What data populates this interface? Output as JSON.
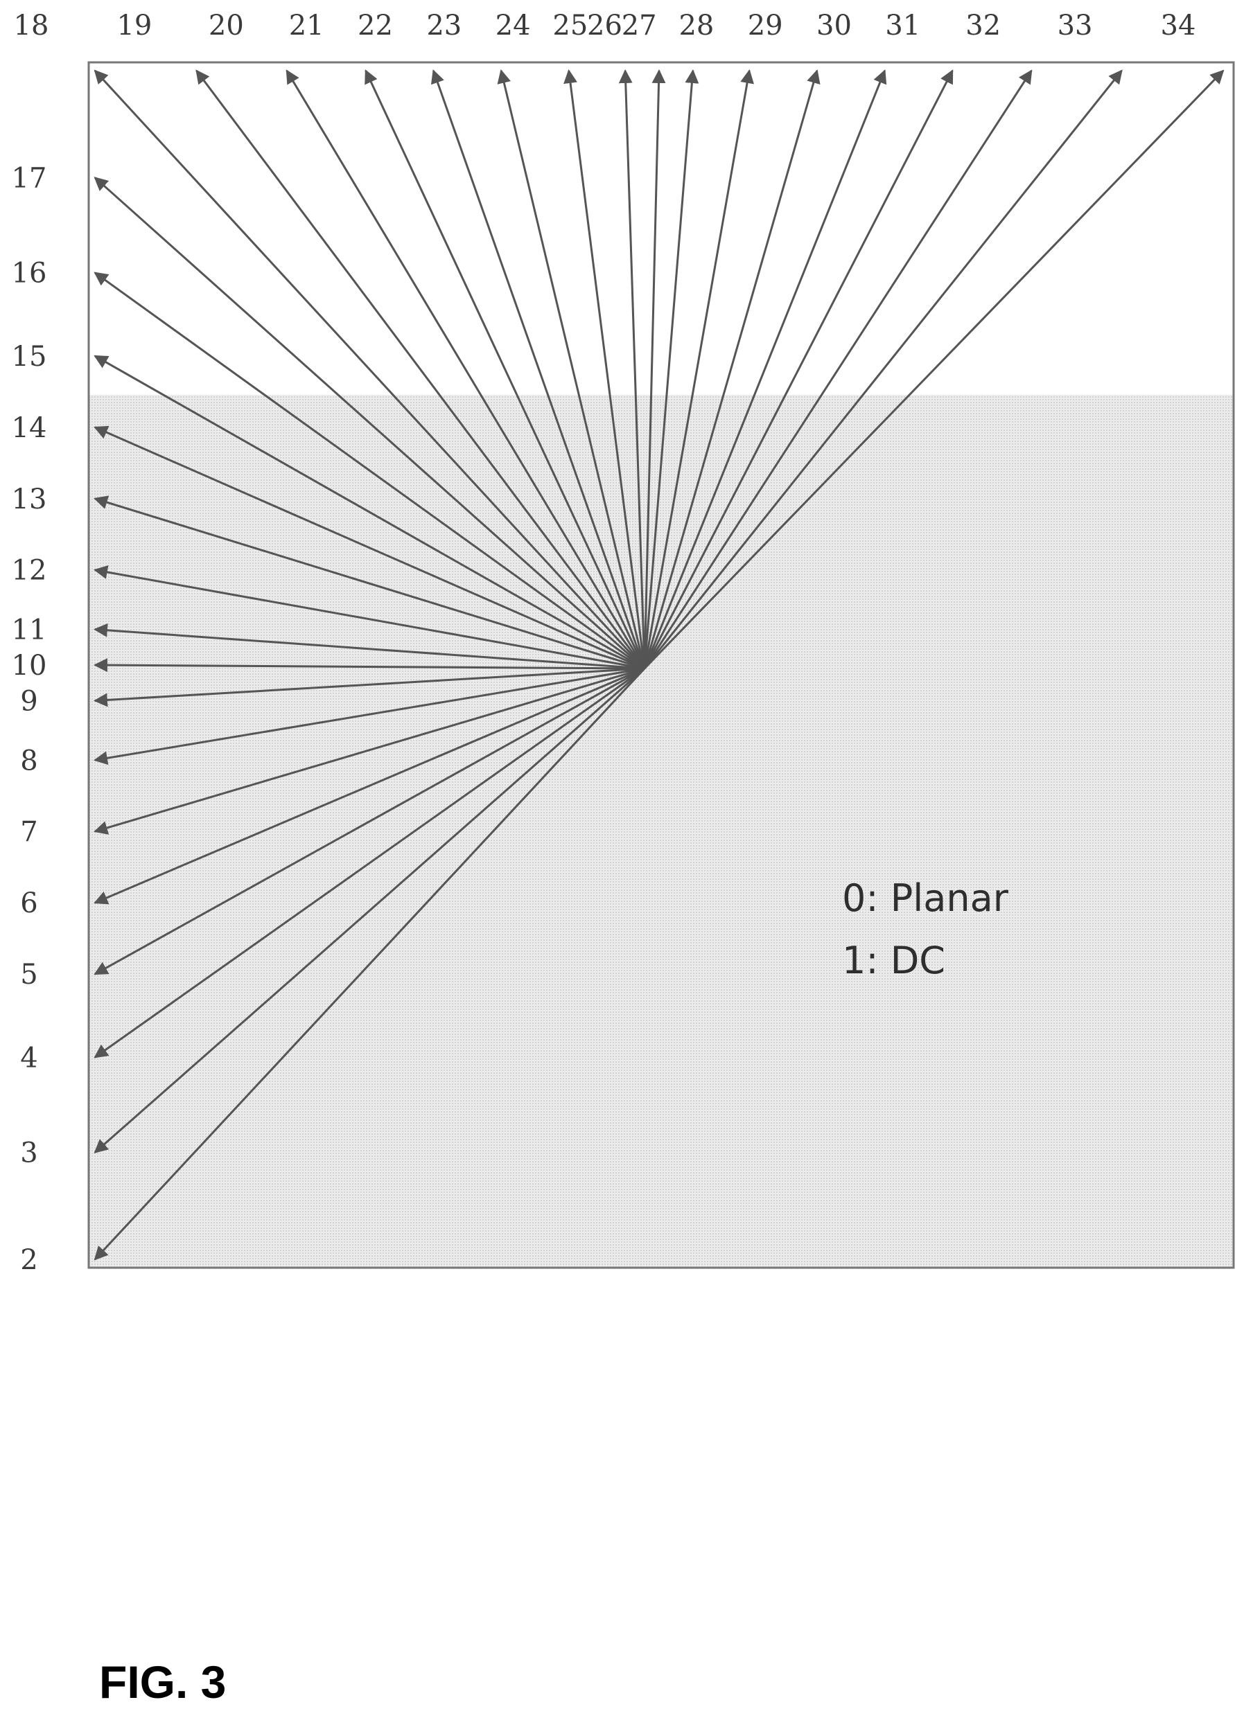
{
  "figure": {
    "caption": "FIG. 3"
  },
  "diagram": {
    "type": "intra-prediction-angular-modes",
    "convergence_mode": "10",
    "top_modes": [
      {
        "label": "18",
        "pos": 0
      },
      {
        "label": "19",
        "pos": 0.09
      },
      {
        "label": "20",
        "pos": 0.17
      },
      {
        "label": "21",
        "pos": 0.24
      },
      {
        "label": "22",
        "pos": 0.3
      },
      {
        "label": "23",
        "pos": 0.36
      },
      {
        "label": "24",
        "pos": 0.42
      },
      {
        "label": "25",
        "pos": 0.47
      },
      {
        "label": "26",
        "pos": 0.5
      },
      {
        "label": "27",
        "pos": 0.53
      },
      {
        "label": "28",
        "pos": 0.58
      },
      {
        "label": "29",
        "pos": 0.64
      },
      {
        "label": "30",
        "pos": 0.7
      },
      {
        "label": "31",
        "pos": 0.76
      },
      {
        "label": "32",
        "pos": 0.83
      },
      {
        "label": "33",
        "pos": 0.91
      },
      {
        "label": "34",
        "pos": 1.0
      }
    ],
    "left_modes": [
      {
        "label": "17",
        "pos": 0.09
      },
      {
        "label": "16",
        "pos": 0.17
      },
      {
        "label": "15",
        "pos": 0.24
      },
      {
        "label": "14",
        "pos": 0.3
      },
      {
        "label": "13",
        "pos": 0.36
      },
      {
        "label": "12",
        "pos": 0.42
      },
      {
        "label": "11",
        "pos": 0.47
      },
      {
        "label": "10",
        "pos": 0.5
      },
      {
        "label": "9",
        "pos": 0.53
      },
      {
        "label": "8",
        "pos": 0.58
      },
      {
        "label": "7",
        "pos": 0.64
      },
      {
        "label": "6",
        "pos": 0.7
      },
      {
        "label": "5",
        "pos": 0.76
      },
      {
        "label": "4",
        "pos": 0.83
      },
      {
        "label": "3",
        "pos": 0.91
      },
      {
        "label": "2",
        "pos": 1.0
      }
    ],
    "legend": [
      {
        "text": "0: Planar"
      },
      {
        "text": "1: DC"
      }
    ],
    "colors": {
      "line": "#555555",
      "frame": "#777777",
      "shade": "#e4e4e4"
    }
  }
}
